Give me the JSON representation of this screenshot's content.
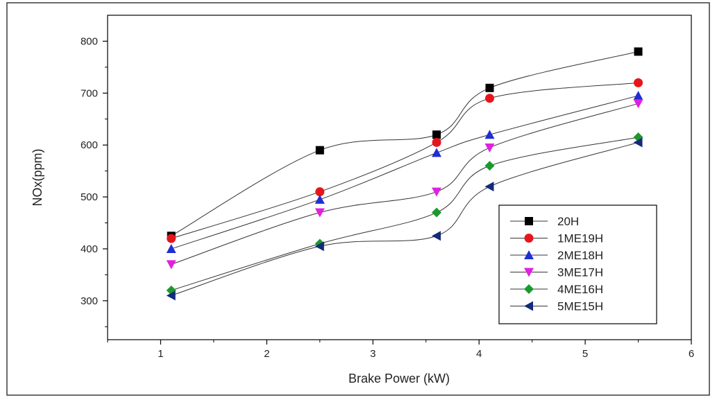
{
  "chart_data": {
    "type": "line",
    "title": "",
    "xlabel": "Brake Power (kW)",
    "ylabel": "NOx(ppm)",
    "xlim": [
      0.5,
      6
    ],
    "ylim": [
      225,
      850
    ],
    "x_ticks": [
      1,
      2,
      3,
      4,
      5,
      6
    ],
    "y_ticks": [
      300,
      400,
      500,
      600,
      700,
      800
    ],
    "grid": false,
    "legend_position": "bottom-right",
    "x": [
      1.1,
      2.5,
      3.6,
      4.1,
      5.5
    ],
    "series": [
      {
        "name": "20H",
        "marker": "square",
        "color": "#000000",
        "values": [
          425,
          590,
          620,
          710,
          780
        ]
      },
      {
        "name": "1ME19H",
        "marker": "circle",
        "color": "#e8141b",
        "values": [
          420,
          510,
          605,
          690,
          720
        ]
      },
      {
        "name": "2ME18H",
        "marker": "triangle-up",
        "color": "#1f2ed3",
        "values": [
          400,
          495,
          585,
          620,
          695
        ]
      },
      {
        "name": "3ME17H",
        "marker": "triangle-down",
        "color": "#e020e0",
        "values": [
          370,
          470,
          510,
          595,
          680
        ]
      },
      {
        "name": "4ME16H",
        "marker": "diamond",
        "color": "#1a9a2c",
        "values": [
          320,
          410,
          470,
          560,
          615
        ]
      },
      {
        "name": "5ME15H",
        "marker": "triangle-left",
        "color": "#142a7a",
        "values": [
          310,
          405,
          425,
          520,
          605
        ]
      }
    ]
  }
}
